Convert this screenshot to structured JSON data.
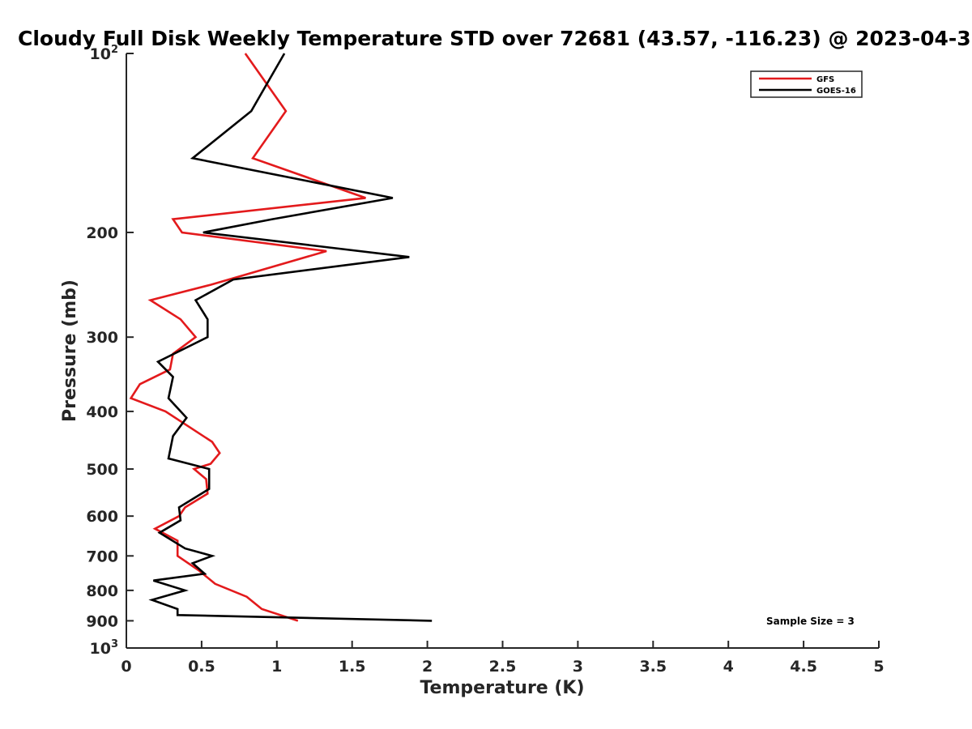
{
  "chart_data": {
    "type": "line",
    "title": "Cloudy Full Disk Weekly Temperature STD over 72681 (43.57, -116.23) @ 2023-04-3",
    "xlabel": "Temperature (K)",
    "ylabel": "Pressure (mb)",
    "xlim": [
      0,
      5
    ],
    "ylim": [
      100,
      1000
    ],
    "y_scale": "log",
    "y_reversed": true,
    "x_ticks": [
      "0",
      "0.5",
      "1",
      "1.5",
      "2",
      "2.5",
      "3",
      "3.5",
      "4",
      "4.5",
      "5"
    ],
    "x_tick_values": [
      0,
      0.5,
      1,
      1.5,
      2,
      2.5,
      3,
      3.5,
      4,
      4.5,
      5
    ],
    "y_ticks": [
      {
        "value": 100,
        "base": "10",
        "exp": "2"
      },
      {
        "value": 200,
        "label": "200"
      },
      {
        "value": 300,
        "label": "300"
      },
      {
        "value": 400,
        "label": "400"
      },
      {
        "value": 500,
        "label": "500"
      },
      {
        "value": 600,
        "label": "600"
      },
      {
        "value": 700,
        "label": "700"
      },
      {
        "value": 800,
        "label": "800"
      },
      {
        "value": 900,
        "label": "900"
      },
      {
        "value": 1000,
        "base": "10",
        "exp": "3"
      }
    ],
    "grid": false,
    "legend_position": "top-right",
    "series": [
      {
        "name": "GFS",
        "color": "#e31a1c",
        "points": [
          [
            0.79,
            100
          ],
          [
            1.06,
            125
          ],
          [
            0.84,
            150
          ],
          [
            1.59,
            175
          ],
          [
            0.31,
            190
          ],
          [
            0.37,
            200
          ],
          [
            1.33,
            215
          ],
          [
            0.56,
            245
          ],
          [
            0.16,
            260
          ],
          [
            0.36,
            280
          ],
          [
            0.46,
            300
          ],
          [
            0.31,
            320
          ],
          [
            0.29,
            340
          ],
          [
            0.09,
            360
          ],
          [
            0.03,
            380
          ],
          [
            0.26,
            400
          ],
          [
            0.57,
            450
          ],
          [
            0.62,
            470
          ],
          [
            0.56,
            490
          ],
          [
            0.45,
            500
          ],
          [
            0.53,
            520
          ],
          [
            0.54,
            550
          ],
          [
            0.39,
            580
          ],
          [
            0.35,
            600
          ],
          [
            0.19,
            630
          ],
          [
            0.34,
            660
          ],
          [
            0.34,
            700
          ],
          [
            0.48,
            740
          ],
          [
            0.59,
            780
          ],
          [
            0.8,
            820
          ],
          [
            0.9,
            860
          ],
          [
            1.14,
            900
          ]
        ]
      },
      {
        "name": "GOES-16",
        "color": "#000000",
        "points": [
          [
            1.05,
            100
          ],
          [
            0.83,
            125
          ],
          [
            0.44,
            150
          ],
          [
            1.77,
            175
          ],
          [
            0.97,
            190
          ],
          [
            0.51,
            200
          ],
          [
            1.88,
            220
          ],
          [
            0.71,
            240
          ],
          [
            0.46,
            260
          ],
          [
            0.54,
            280
          ],
          [
            0.54,
            300
          ],
          [
            0.21,
            330
          ],
          [
            0.31,
            350
          ],
          [
            0.28,
            380
          ],
          [
            0.4,
            410
          ],
          [
            0.31,
            440
          ],
          [
            0.28,
            480
          ],
          [
            0.55,
            500
          ],
          [
            0.55,
            540
          ],
          [
            0.35,
            580
          ],
          [
            0.36,
            610
          ],
          [
            0.22,
            640
          ],
          [
            0.39,
            680
          ],
          [
            0.57,
            700
          ],
          [
            0.44,
            720
          ],
          [
            0.52,
            750
          ],
          [
            0.18,
            770
          ],
          [
            0.39,
            800
          ],
          [
            0.17,
            830
          ],
          [
            0.34,
            860
          ],
          [
            0.34,
            880
          ],
          [
            2.03,
            900
          ]
        ]
      }
    ],
    "annotations": [
      "Sample Size = 3"
    ]
  }
}
